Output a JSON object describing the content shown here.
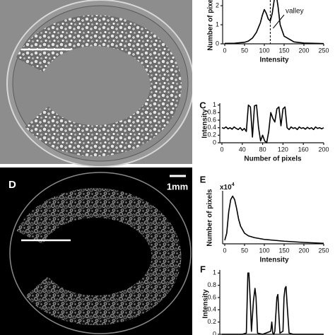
{
  "chart_data": [
    {
      "type": "line",
      "xlabel": "Intensity",
      "ylabel": "Number of pixels",
      "x": [
        0,
        25,
        50,
        60,
        70,
        80,
        90,
        95,
        100,
        105,
        110,
        115,
        120,
        125,
        130,
        135,
        140,
        150,
        175,
        200,
        250
      ],
      "values": [
        0.02,
        0.03,
        0.08,
        0.15,
        0.3,
        0.6,
        1.1,
        1.5,
        1.8,
        1.6,
        1.3,
        1.2,
        1.6,
        2.3,
        2.6,
        1.9,
        1.0,
        0.4,
        0.1,
        0.04,
        0.01
      ],
      "color": "#000000",
      "xlim": [
        0,
        250
      ],
      "ylim": [
        0,
        2.3
      ],
      "xticks": [
        0,
        50,
        100,
        150,
        200,
        250
      ],
      "yticks": [
        0,
        1,
        2
      ],
      "annotation": {
        "text": "valley",
        "x": 115
      }
    },
    {
      "type": "line",
      "panel": "C",
      "xlabel": "Number of pixels",
      "ylabel": "Intensity",
      "x": [
        0,
        4,
        8,
        12,
        16,
        20,
        24,
        28,
        32,
        36,
        40,
        44,
        48,
        52,
        56,
        60,
        64,
        68,
        72,
        76,
        80,
        84,
        88,
        92,
        96,
        100,
        104,
        108,
        112,
        116,
        120,
        124,
        128,
        132,
        136,
        140,
        144,
        148,
        152,
        156,
        160,
        164,
        168,
        172,
        176,
        180,
        184,
        188,
        192,
        196,
        200
      ],
      "values": [
        0.4,
        0.38,
        0.42,
        0.37,
        0.4,
        0.36,
        0.42,
        0.38,
        0.35,
        0.4,
        0.33,
        0.38,
        0.3,
        1.0,
        0.95,
        0.15,
        0.98,
        1.0,
        0.4,
        0.05,
        0.2,
        0.05,
        0.0,
        0.3,
        0.8,
        0.65,
        0.55,
        0.9,
        0.95,
        0.45,
        0.9,
        0.95,
        0.4,
        0.35,
        0.42,
        0.38,
        0.4,
        0.35,
        0.42,
        0.38,
        0.4,
        0.36,
        0.41,
        0.37,
        0.4,
        0.35,
        0.42,
        0.38,
        0.4,
        0.37,
        0.4
      ],
      "color": "#000000",
      "xlim": [
        0,
        200
      ],
      "ylim": [
        0,
        1.05
      ],
      "xticks": [
        0,
        40,
        80,
        120,
        160,
        200
      ],
      "yticks": [
        0,
        0.2,
        0.4,
        0.6,
        0.8,
        1
      ]
    },
    {
      "type": "line",
      "panel": "E",
      "scale_label": {
        "base": "x10",
        "exponent": "4"
      },
      "xlabel": "Intensity",
      "ylabel": "Number of pixels",
      "x": [
        0,
        5,
        10,
        15,
        20,
        25,
        30,
        35,
        40,
        50,
        60,
        75,
        100,
        125,
        150,
        200,
        250
      ],
      "values": [
        0.2,
        0.6,
        1.8,
        2.5,
        2.7,
        2.5,
        2.0,
        1.4,
        1.0,
        0.6,
        0.45,
        0.35,
        0.25,
        0.2,
        0.15,
        0.08,
        0.03
      ],
      "color": "#000000",
      "xlim": [
        0,
        250
      ],
      "ylim": [
        0,
        3
      ],
      "xticks": [
        0,
        50,
        100,
        150,
        200,
        250
      ]
    },
    {
      "type": "line",
      "panel": "F",
      "ylabel": "Intensity",
      "x": [
        0,
        40,
        48,
        51,
        53,
        56,
        58,
        62,
        65,
        67,
        70,
        80,
        96,
        98,
        100,
        102,
        104,
        108,
        110,
        112,
        114,
        120,
        122,
        124,
        126,
        128,
        132,
        140,
        200
      ],
      "values": [
        0,
        0,
        0.02,
        1.0,
        1.0,
        0.5,
        0.05,
        0.55,
        0.75,
        0.6,
        0.02,
        0,
        0.05,
        0.2,
        0.02,
        0,
        0.05,
        0.6,
        0.65,
        0.3,
        0.02,
        0.05,
        0.6,
        0.75,
        0.78,
        0.5,
        0.02,
        0,
        0
      ],
      "color": "#000000",
      "xlim": [
        0,
        200
      ],
      "ylim": [
        0,
        1.05
      ],
      "yticks": [
        0,
        0.2,
        0.4,
        0.6,
        0.8,
        1
      ]
    }
  ],
  "images": {
    "panel_d": {
      "label": "D",
      "scale_bar": "1mm"
    }
  }
}
